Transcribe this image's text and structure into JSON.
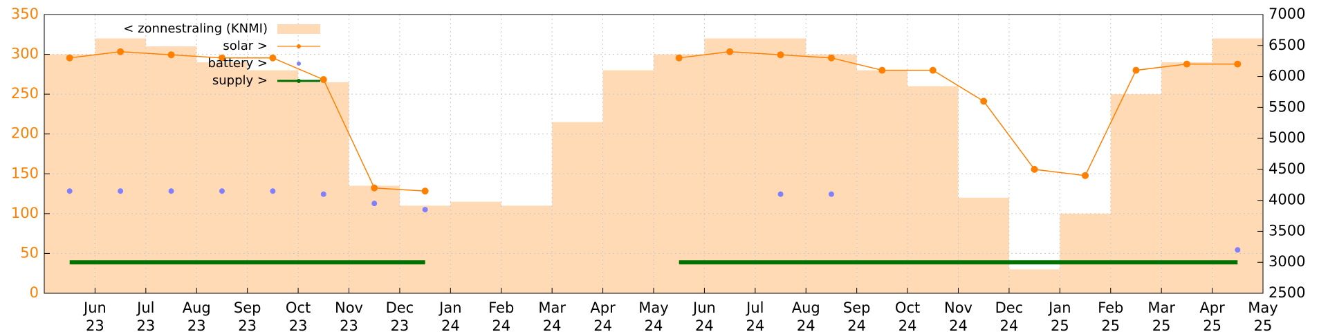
{
  "chart_data": {
    "type": "line",
    "xlim": [
      "2023-05",
      "2025-05"
    ],
    "xticks": [
      {
        "value": "2023-06",
        "label": "Jun\n23"
      },
      {
        "value": "2023-07",
        "label": "Jul\n23"
      },
      {
        "value": "2023-08",
        "label": "Aug\n23"
      },
      {
        "value": "2023-09",
        "label": "Sep\n23"
      },
      {
        "value": "2023-10",
        "label": "Oct\n23"
      },
      {
        "value": "2023-11",
        "label": "Nov\n23"
      },
      {
        "value": "2023-12",
        "label": "Dec\n23"
      },
      {
        "value": "2024-01",
        "label": "Jan\n24"
      },
      {
        "value": "2024-02",
        "label": "Feb\n24"
      },
      {
        "value": "2024-03",
        "label": "Mar\n24"
      },
      {
        "value": "2024-04",
        "label": "Apr\n24"
      },
      {
        "value": "2024-05",
        "label": "May\n24"
      },
      {
        "value": "2024-06",
        "label": "Jun\n24"
      },
      {
        "value": "2024-07",
        "label": "Jul\n24"
      },
      {
        "value": "2024-08",
        "label": "Aug\n24"
      },
      {
        "value": "2024-09",
        "label": "Sep\n24"
      },
      {
        "value": "2024-10",
        "label": "Oct\n24"
      },
      {
        "value": "2024-11",
        "label": "Nov\n24"
      },
      {
        "value": "2024-12",
        "label": "Dec\n24"
      },
      {
        "value": "2025-01",
        "label": "Jan\n25"
      },
      {
        "value": "2025-02",
        "label": "Feb\n25"
      },
      {
        "value": "2025-03",
        "label": "Mar\n25"
      },
      {
        "value": "2025-04",
        "label": "Apr\n25"
      },
      {
        "value": "2025-05",
        "label": "May\n25"
      }
    ],
    "ylim": [
      0,
      350
    ],
    "yticks": [
      0,
      50,
      100,
      150,
      200,
      250,
      300,
      350
    ],
    "y2lim": [
      2500,
      7000
    ],
    "y2ticks": [
      2500,
      3000,
      3500,
      4000,
      4500,
      5000,
      5500,
      6000,
      6500,
      7000
    ],
    "grid": true,
    "legend": "top-left",
    "x": [
      "2023-05",
      "2023-06",
      "2023-07",
      "2023-08",
      "2023-09",
      "2023-10",
      "2023-11",
      "2023-12",
      "2024-01",
      "2024-02",
      "2024-03",
      "2024-04",
      "2024-05",
      "2024-06",
      "2024-07",
      "2024-08",
      "2024-09",
      "2024-10",
      "2024-11",
      "2024-12",
      "2025-01",
      "2025-02",
      "2025-03",
      "2025-04"
    ],
    "series": [
      {
        "name": "< zonnestraling (KNMI)",
        "color": "#ffdab5",
        "style": "area",
        "values": [
          300,
          320,
          310,
          290,
          280,
          265,
          135,
          110,
          115,
          110,
          215,
          280,
          300,
          320,
          320,
          300,
          280,
          260,
          120,
          30,
          100,
          250,
          290,
          320
        ]
      },
      {
        "name": "solar >",
        "color": "#ff8000",
        "axis": "y2",
        "style": "linespoints",
        "values": [
          6300,
          6400,
          6350,
          6300,
          6300,
          5950,
          4200,
          4150,
          null,
          null,
          null,
          null,
          6300,
          6400,
          6350,
          6300,
          6100,
          6100,
          5600,
          4500,
          4400,
          6100,
          6200,
          6200
        ]
      },
      {
        "name": "battery >",
        "color": "#8080ff",
        "axis": "y2",
        "style": "points",
        "values": [
          4150,
          4150,
          4150,
          4150,
          4150,
          4100,
          3950,
          3850,
          null,
          null,
          null,
          null,
          null,
          null,
          4100,
          4100,
          null,
          null,
          null,
          null,
          null,
          null,
          null,
          3200
        ]
      },
      {
        "name": "supply >",
        "color": "#007000",
        "axis": "y2",
        "style": "line",
        "values": [
          3000,
          3000,
          3000,
          3000,
          3000,
          3000,
          3000,
          3000,
          null,
          null,
          null,
          null,
          3000,
          3000,
          3000,
          3000,
          3000,
          3000,
          3000,
          3000,
          3000,
          3000,
          3000,
          3000
        ]
      }
    ]
  }
}
